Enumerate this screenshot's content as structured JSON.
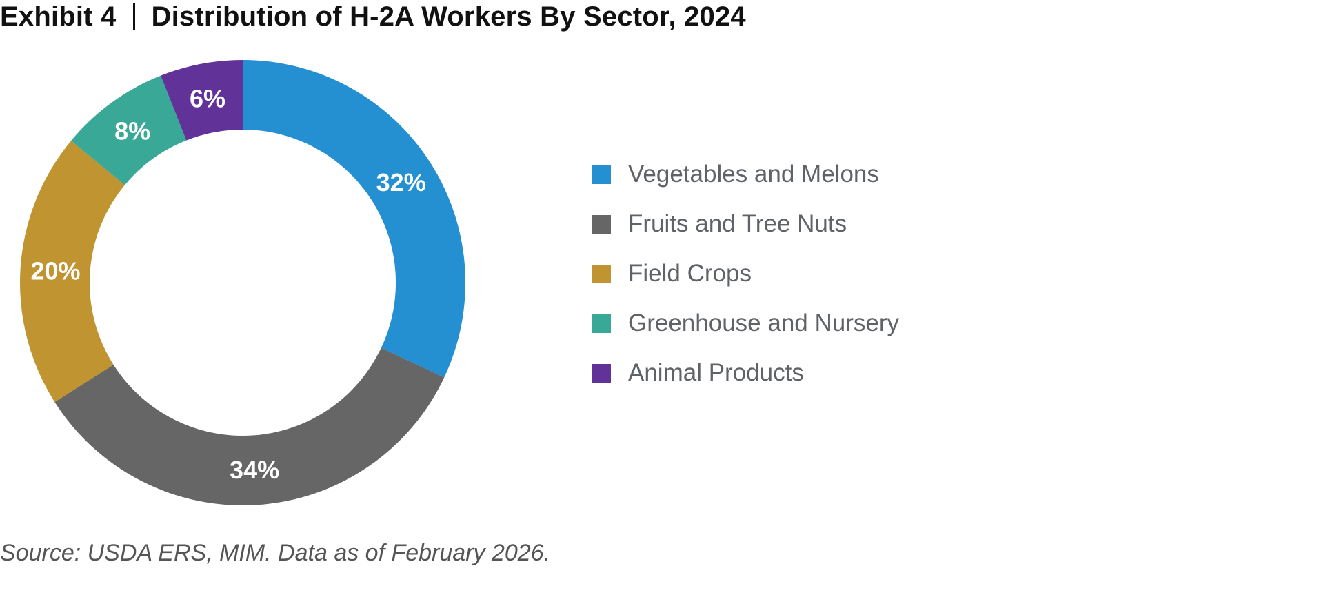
{
  "header": {
    "exhibit": "Exhibit 4",
    "title": "Distribution of H-2A Workers By Sector, 2024"
  },
  "source": "Source: USDA ERS, MIM. Data as of February 2026.",
  "chart_data": {
    "type": "pie",
    "subtype": "donut",
    "legend_position": "right",
    "categories": [
      "Vegetables and Melons",
      "Fruits and Tree Nuts",
      "Field Crops",
      "Greenhouse and Nursery",
      "Animal Products"
    ],
    "values": [
      32,
      34,
      20,
      8,
      6
    ],
    "labels": [
      "32%",
      "34%",
      "20%",
      "8%",
      "6%"
    ],
    "colors": [
      "#2490d1",
      "#666666",
      "#c09431",
      "#3aa896",
      "#613298"
    ]
  }
}
